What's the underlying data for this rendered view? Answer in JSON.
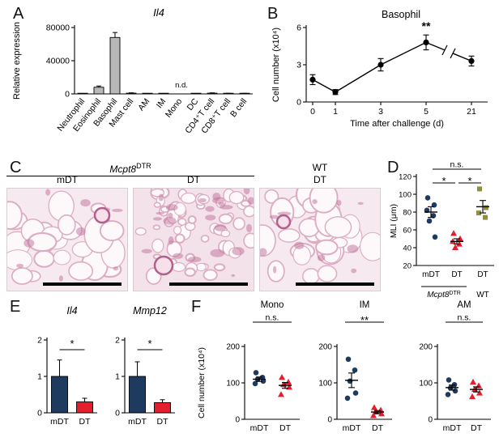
{
  "panels": {
    "A": {
      "label": "A"
    },
    "B": {
      "label": "B"
    },
    "C": {
      "label": "C",
      "genotype": {
        "base": "Mcpt8",
        "sup": "DTR"
      },
      "wt_label": "WT",
      "col_labels": [
        "mDT",
        "DT",
        "DT"
      ]
    },
    "D": {
      "label": "D"
    },
    "E": {
      "label": "E"
    },
    "F": {
      "label": "F"
    }
  },
  "colors": {
    "mdt_navy": "#1e3a5f",
    "dt_red": "#e31e2d",
    "wt_olive": "#8f8f3f",
    "bar_gray": "#b8b8b8"
  },
  "chart_data": [
    {
      "id": "A",
      "type": "bar",
      "title": "Il4",
      "title_italic": true,
      "ylabel": "Relative expression",
      "categories": [
        "Neutrophil",
        "Eosinophil",
        "Basophil",
        "Mast cell",
        "AM",
        "IM",
        "Mono",
        "DC",
        "CD4⁺T cell",
        "CD8⁺T cell",
        "B cell"
      ],
      "values": [
        200,
        8000,
        68000,
        900,
        150,
        150,
        null,
        250,
        900,
        500,
        500
      ],
      "errors": [
        100,
        1500,
        6000,
        400,
        80,
        80,
        null,
        120,
        350,
        250,
        200
      ],
      "not_detected": {
        "category": "Mono",
        "text": "n.d."
      },
      "ylim": [
        0,
        80000
      ],
      "yticks": [
        0,
        40000,
        80000
      ],
      "bar_color": "#b8b8b8"
    },
    {
      "id": "B",
      "type": "line",
      "title": "Basophil",
      "ylabel": "Cell number (x10⁴)",
      "xlabel": "Time after challenge (d)",
      "x": [
        0,
        1,
        3,
        5,
        21
      ],
      "values": [
        1.8,
        0.8,
        3.0,
        4.8,
        3.3
      ],
      "errors": [
        0.4,
        0.2,
        0.5,
        0.6,
        0.4
      ],
      "ylim": [
        0,
        6
      ],
      "yticks": [
        0,
        3,
        6
      ],
      "axis_break_between": [
        5,
        21
      ],
      "annotations": [
        {
          "x": 5,
          "text": "**"
        }
      ],
      "marker_color": "#000000"
    },
    {
      "id": "D",
      "type": "scatter",
      "ylabel": "MLI (μm)",
      "ylim": [
        20,
        120
      ],
      "yticks": [
        20,
        40,
        60,
        80,
        100,
        120
      ],
      "groups": [
        {
          "label": "mDT",
          "marker": "circle",
          "color": "#1e3a5f",
          "points": [
            96,
            88,
            82,
            76,
            70,
            52
          ],
          "mean": 80,
          "sem": 6
        },
        {
          "label": "DT",
          "marker": "triangle",
          "color": "#e31e2d",
          "points": [
            56,
            50,
            47,
            44,
            40
          ],
          "mean": 47,
          "sem": 3
        },
        {
          "label": "DT",
          "marker": "square",
          "color": "#8f8f3f",
          "points": [
            106,
            85,
            79,
            74
          ],
          "mean": 86,
          "sem": 7
        }
      ],
      "significance": [
        {
          "from": 0,
          "to": 2,
          "text": "n.s.",
          "level": 0
        },
        {
          "from": 0,
          "to": 1,
          "text": "*",
          "level": 1
        },
        {
          "from": 1,
          "to": 2,
          "text": "*",
          "level": 1
        }
      ],
      "footer": [
        {
          "base": "Mcpt8",
          "sup": "DTR",
          "italic": true,
          "span": [
            0,
            1
          ],
          "overline": true
        },
        {
          "base": "WT",
          "span": [
            2,
            2
          ]
        }
      ]
    },
    {
      "id": "E1",
      "type": "bar",
      "title": "Il4",
      "title_italic": true,
      "categories": [
        "mDT",
        "DT"
      ],
      "values": [
        1.0,
        0.3
      ],
      "errors": [
        0.45,
        0.1
      ],
      "colors": [
        "#1e3a5f",
        "#e31e2d"
      ],
      "ylim": [
        0,
        2
      ],
      "yticks": [
        0,
        1,
        2
      ],
      "significance": [
        {
          "from": 0,
          "to": 1,
          "text": "*"
        }
      ]
    },
    {
      "id": "E2",
      "type": "bar",
      "title": "Mmp12",
      "title_italic": true,
      "categories": [
        "mDT",
        "DT"
      ],
      "values": [
        1.0,
        0.28
      ],
      "errors": [
        0.4,
        0.08
      ],
      "colors": [
        "#1e3a5f",
        "#e31e2d"
      ],
      "ylim": [
        0,
        2
      ],
      "yticks": [
        0,
        1,
        2
      ],
      "significance": [
        {
          "from": 0,
          "to": 1,
          "text": "*"
        }
      ]
    },
    {
      "id": "F1",
      "type": "scatter",
      "title": "Mono",
      "ylabel": "Cell number (x10⁴)",
      "ylim": [
        0,
        200
      ],
      "yticks": [
        0,
        100,
        200
      ],
      "groups": [
        {
          "label": "mDT",
          "marker": "circle",
          "color": "#1e3a5f",
          "points": [
            128,
            115,
            110,
            105,
            98
          ],
          "mean": 110,
          "sem": 6
        },
        {
          "label": "DT",
          "marker": "triangle",
          "color": "#e31e2d",
          "points": [
            115,
            102,
            95,
            88,
            68
          ],
          "mean": 93,
          "sem": 8
        }
      ],
      "significance": [
        {
          "from": 0,
          "to": 1,
          "text": "n.s.",
          "level": 0
        }
      ]
    },
    {
      "id": "F2",
      "type": "scatter",
      "title": "IM",
      "ylim": [
        0,
        200
      ],
      "yticks": [
        0,
        100,
        200
      ],
      "groups": [
        {
          "label": "mDT",
          "marker": "circle",
          "color": "#1e3a5f",
          "points": [
            165,
            135,
            105,
            72,
            58
          ],
          "mean": 107,
          "sem": 20
        },
        {
          "label": "DT",
          "marker": "triangle",
          "color": "#e31e2d",
          "points": [
            32,
            25,
            20,
            15,
            10
          ],
          "mean": 20,
          "sem": 4
        }
      ],
      "significance": [
        {
          "from": 0,
          "to": 1,
          "text": "**",
          "level": 0
        }
      ]
    },
    {
      "id": "F3",
      "type": "scatter",
      "title": "AM",
      "ylim": [
        0,
        200
      ],
      "yticks": [
        0,
        100,
        200
      ],
      "groups": [
        {
          "label": "mDT",
          "marker": "circle",
          "color": "#1e3a5f",
          "points": [
            108,
            95,
            86,
            78,
            68
          ],
          "mean": 87,
          "sem": 7
        },
        {
          "label": "DT",
          "marker": "triangle",
          "color": "#e31e2d",
          "points": [
            102,
            92,
            82,
            72,
            62
          ],
          "mean": 82,
          "sem": 7
        }
      ],
      "significance": [
        {
          "from": 0,
          "to": 1,
          "text": "n.s.",
          "level": 0
        }
      ]
    }
  ]
}
